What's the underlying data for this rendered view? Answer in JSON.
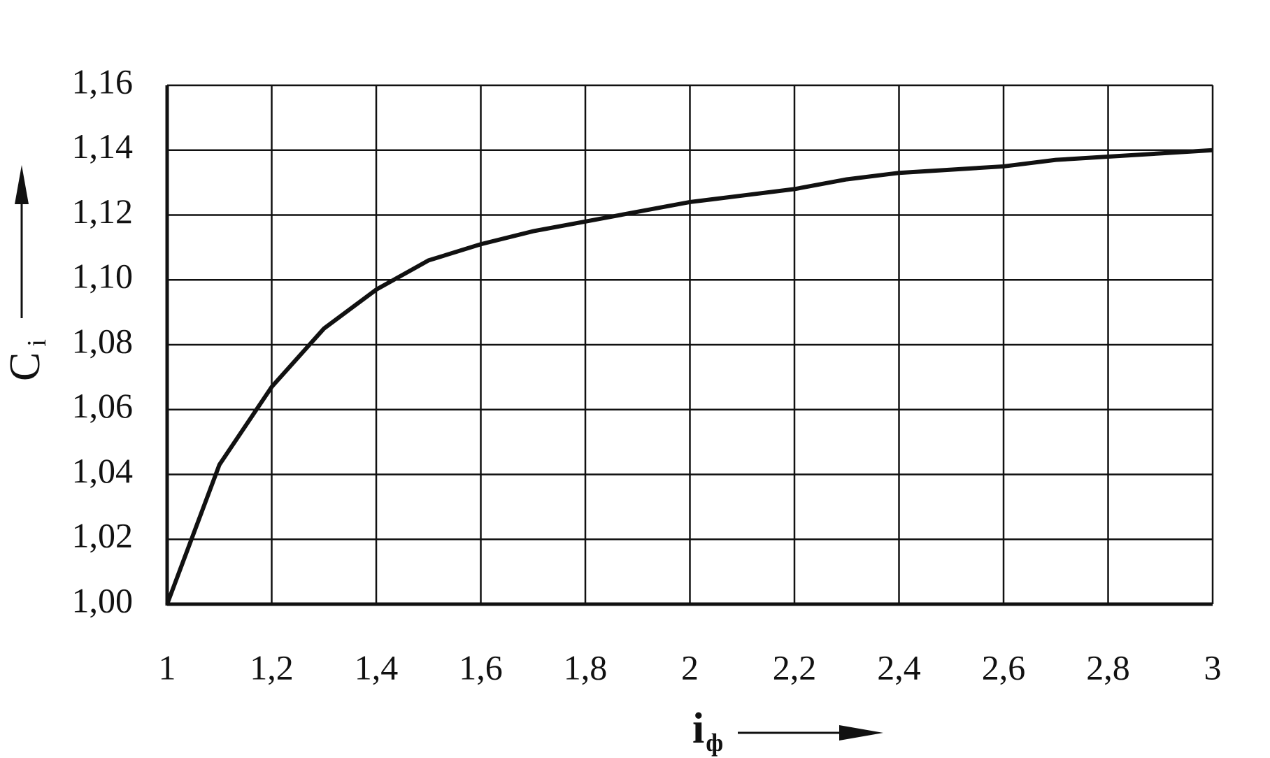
{
  "chart_data": {
    "type": "line",
    "xlabel": "i",
    "xlabel_sub": "ф",
    "ylabel": "C",
    "ylabel_sub": "i",
    "x": [
      1,
      1.1,
      1.2,
      1.3,
      1.4,
      1.5,
      1.6,
      1.7,
      1.8,
      1.9,
      2,
      2.1,
      2.2,
      2.3,
      2.4,
      2.5,
      2.6,
      2.7,
      2.8,
      2.9,
      3
    ],
    "series": [
      {
        "color": "#111111",
        "values": [
          1.0,
          1.043,
          1.067,
          1.085,
          1.097,
          1.106,
          1.111,
          1.115,
          1.118,
          1.121,
          1.124,
          1.126,
          1.128,
          1.131,
          1.133,
          1.134,
          1.135,
          1.137,
          1.138,
          1.139,
          1.14
        ]
      }
    ],
    "xlim": [
      1,
      3
    ],
    "xticks": [
      1,
      {
        "value": 1.2,
        "label": "1,2"
      },
      {
        "value": 1.4,
        "label": "1,4"
      },
      {
        "value": 1.6,
        "label": "1,6"
      },
      {
        "value": 1.8,
        "label": "1,8"
      },
      2,
      {
        "value": 2.2,
        "label": "2,2"
      },
      {
        "value": 2.4,
        "label": "2,4"
      },
      {
        "value": 2.6,
        "label": "2,6"
      },
      {
        "value": 2.8,
        "label": "2,8"
      },
      3
    ],
    "ylim": [
      1.0,
      1.16
    ],
    "yticks": [
      {
        "value": 1.0,
        "label": "1,00"
      },
      {
        "value": 1.02,
        "label": "1,02"
      },
      {
        "value": 1.04,
        "label": "1,04"
      },
      {
        "value": 1.06,
        "label": "1,06"
      },
      {
        "value": 1.08,
        "label": "1,08"
      },
      {
        "value": 1.1,
        "label": "1,10"
      },
      {
        "value": 1.12,
        "label": "1,12"
      },
      {
        "value": 1.14,
        "label": "1,14"
      },
      {
        "value": 1.16,
        "label": "1,16"
      }
    ],
    "grid": true
  }
}
